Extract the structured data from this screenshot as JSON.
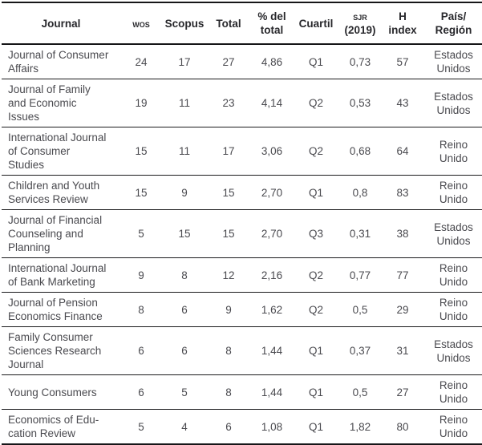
{
  "table": {
    "columns": [
      {
        "key": "journal",
        "label": "Journal",
        "smallcaps": false
      },
      {
        "key": "wos",
        "label": "wos",
        "smallcaps": true
      },
      {
        "key": "scopus",
        "label": "Scopus",
        "smallcaps": false
      },
      {
        "key": "total",
        "label": "Total",
        "smallcaps": false
      },
      {
        "key": "pct",
        "label": "% del\ntotal",
        "smallcaps": false
      },
      {
        "key": "cuartil",
        "label": "Cuartil",
        "smallcaps": false
      },
      {
        "key": "sjr",
        "label": "sjr\n(2019)",
        "smallcaps": true
      },
      {
        "key": "hindex",
        "label": "H\nindex",
        "smallcaps": false
      },
      {
        "key": "pais",
        "label": "País/\nRegión",
        "smallcaps": false
      }
    ],
    "rows": [
      {
        "journal": "Journal of Consumer\nAffairs",
        "wos": "24",
        "scopus": "17",
        "total": "27",
        "pct": "4,86",
        "cuartil": "Q1",
        "sjr": "0,73",
        "hindex": "57",
        "pais": "Estados\nUnidos"
      },
      {
        "journal": "Journal of Family\nand Economic\nIssues",
        "wos": "19",
        "scopus": "11",
        "total": "23",
        "pct": "4,14",
        "cuartil": "Q2",
        "sjr": "0,53",
        "hindex": "43",
        "pais": "Estados\nUnidos"
      },
      {
        "journal": "International Journal\nof Consumer\nStudies",
        "wos": "15",
        "scopus": "11",
        "total": "17",
        "pct": "3,06",
        "cuartil": "Q2",
        "sjr": "0,68",
        "hindex": "64",
        "pais": "Reino\nUnido"
      },
      {
        "journal": "Children and Youth\nServices Review",
        "wos": "15",
        "scopus": "9",
        "total": "15",
        "pct": "2,70",
        "cuartil": "Q1",
        "sjr": "0,8",
        "hindex": "83",
        "pais": "Reino\nUnido"
      },
      {
        "journal": "Journal of Financial\nCounseling and\nPlanning",
        "wos": "5",
        "scopus": "15",
        "total": "15",
        "pct": "2,70",
        "cuartil": "Q3",
        "sjr": "0,31",
        "hindex": "38",
        "pais": "Estados\nUnidos"
      },
      {
        "journal": "International Journal\nof Bank Marketing",
        "wos": "9",
        "scopus": "8",
        "total": "12",
        "pct": "2,16",
        "cuartil": "Q2",
        "sjr": "0,77",
        "hindex": "77",
        "pais": "Reino\nUnido"
      },
      {
        "journal": "Journal of Pension\nEconomics Finance",
        "wos": "8",
        "scopus": "6",
        "total": "9",
        "pct": "1,62",
        "cuartil": "Q2",
        "sjr": "0,5",
        "hindex": "29",
        "pais": "Reino\nUnido"
      },
      {
        "journal": "Family Consumer\nSciences Research\nJournal",
        "wos": "6",
        "scopus": "6",
        "total": "8",
        "pct": "1,44",
        "cuartil": "Q1",
        "sjr": "0,37",
        "hindex": "31",
        "pais": "Estados\nUnidos"
      },
      {
        "journal": "Young Consumers",
        "wos": "6",
        "scopus": "5",
        "total": "8",
        "pct": "1,44",
        "cuartil": "Q1",
        "sjr": "0,5",
        "hindex": "27",
        "pais": "Reino\nUnido"
      },
      {
        "journal": "Economics of Edu-\ncation Review",
        "wos": "5",
        "scopus": "4",
        "total": "6",
        "pct": "1,08",
        "cuartil": "Q1",
        "sjr": "1,82",
        "hindex": "80",
        "pais": "Reino\nUnido"
      }
    ]
  },
  "colors": {
    "text": "#4a4a4f",
    "header_text": "#28282c",
    "line": "#161618",
    "background": "#ffffff"
  }
}
